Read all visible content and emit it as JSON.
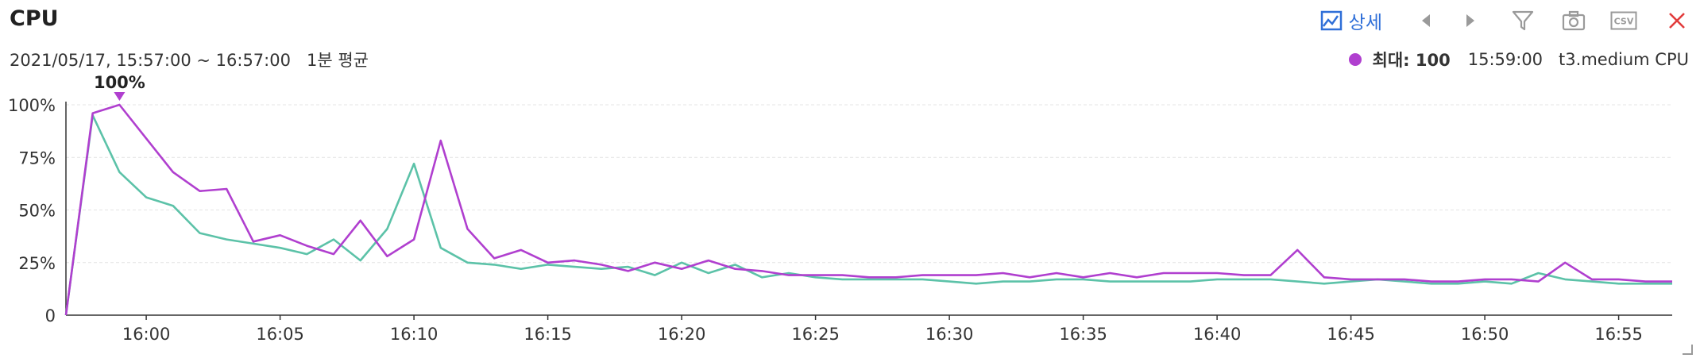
{
  "header": {
    "title": "CPU",
    "subtitle": "2021/05/17, 15:57:00 ~ 16:57:00   1분 평균"
  },
  "toolbar": {
    "detail_label": "상세",
    "icons": [
      "chart-detail-icon",
      "chevron-left-icon",
      "chevron-right-icon",
      "filter-icon",
      "camera-icon",
      "csv-icon",
      "close-icon"
    ]
  },
  "legend": {
    "max_label": "최대: 100",
    "max_time": "15:59:00",
    "series_label": "t3.medium CPU",
    "color": "#b03fcf"
  },
  "chart_data": {
    "type": "line",
    "title": "CPU",
    "xlabel": "",
    "ylabel": "",
    "x": [
      "15:57",
      "15:58",
      "15:59",
      "16:00",
      "16:01",
      "16:02",
      "16:03",
      "16:04",
      "16:05",
      "16:06",
      "16:07",
      "16:08",
      "16:09",
      "16:10",
      "16:11",
      "16:12",
      "16:13",
      "16:14",
      "16:15",
      "16:16",
      "16:17",
      "16:18",
      "16:19",
      "16:20",
      "16:21",
      "16:22",
      "16:23",
      "16:24",
      "16:25",
      "16:26",
      "16:27",
      "16:28",
      "16:29",
      "16:30",
      "16:31",
      "16:32",
      "16:33",
      "16:34",
      "16:35",
      "16:36",
      "16:37",
      "16:38",
      "16:39",
      "16:40",
      "16:41",
      "16:42",
      "16:43",
      "16:44",
      "16:45",
      "16:46",
      "16:47",
      "16:48",
      "16:49",
      "16:50",
      "16:51",
      "16:52",
      "16:53",
      "16:54",
      "16:55",
      "16:56",
      "16:57"
    ],
    "x_ticks": [
      "16:00",
      "16:05",
      "16:10",
      "16:15",
      "16:20",
      "16:25",
      "16:30",
      "16:35",
      "16:40",
      "16:45",
      "16:50",
      "16:55"
    ],
    "y_ticks": [
      0,
      25,
      50,
      75,
      100
    ],
    "y_tick_labels": [
      "0",
      "25%",
      "50%",
      "75%",
      "100%"
    ],
    "ylim": [
      0,
      100
    ],
    "grid": true,
    "series": [
      {
        "color": "#5cc2a8",
        "values": [
          0,
          95,
          68,
          56,
          52,
          39,
          36,
          34,
          32,
          29,
          36,
          26,
          41,
          72,
          32,
          25,
          24,
          22,
          24,
          23,
          22,
          23,
          19,
          25,
          20,
          24,
          18,
          20,
          18,
          17,
          17,
          17,
          17,
          16,
          15,
          16,
          16,
          17,
          17,
          16,
          16,
          16,
          16,
          17,
          17,
          17,
          16,
          15,
          16,
          17,
          16,
          15,
          15,
          16,
          15,
          20,
          17,
          16,
          15,
          15,
          15
        ]
      },
      {
        "color": "#b03fcf",
        "values": [
          0,
          96,
          100,
          84,
          68,
          59,
          60,
          35,
          38,
          33,
          29,
          45,
          28,
          36,
          83,
          41,
          27,
          31,
          25,
          26,
          24,
          21,
          25,
          22,
          26,
          22,
          21,
          19,
          19,
          19,
          18,
          18,
          19,
          19,
          19,
          20,
          18,
          20,
          18,
          20,
          18,
          20,
          20,
          20,
          19,
          19,
          31,
          18,
          17,
          17,
          17,
          16,
          16,
          17,
          17,
          16,
          25,
          17,
          17,
          16,
          16
        ]
      }
    ],
    "annotations": [
      {
        "x": "15:59",
        "y": 100,
        "text": "100%"
      }
    ]
  }
}
